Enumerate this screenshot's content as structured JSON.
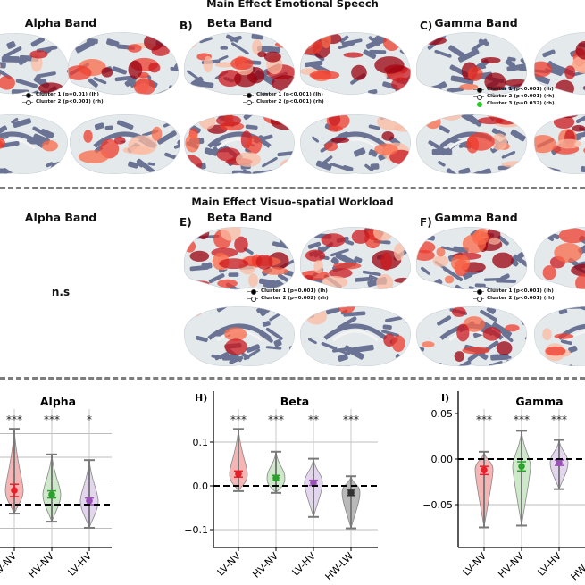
{
  "top_section": {
    "title": "Main Effect Emotional Speech",
    "panels": [
      {
        "letter": "",
        "title": "Alpha Band",
        "legend": [
          "Cluster 1 (p=0.01) (lh)",
          "Cluster 2 (p<0.001) (rh)"
        ]
      },
      {
        "letter": "B)",
        "title": "Beta Band",
        "legend": [
          "Cluster 1 (p<0.001) (lh)",
          "Cluster 2 (p<0.001) (rh)"
        ]
      },
      {
        "letter": "C)",
        "title": "Gamma Band",
        "legend": [
          "Cluster 1 (p<0.001) (lh)",
          "Cluster 2 (p<0.001) (rh)",
          "Cluster 3 (p=0.032) (rh)"
        ]
      }
    ]
  },
  "middle_section": {
    "title": "Main Effect Visuo-spatial Workload",
    "panels": [
      {
        "letter": "",
        "title": "Alpha Band",
        "note": "n.s"
      },
      {
        "letter": "E)",
        "title": "Beta Band",
        "legend": [
          "Cluster 1 (p=0.001) (lh)",
          "Cluster 2 (p=0.002) (rh)"
        ]
      },
      {
        "letter": "F)",
        "title": "Gamma Band",
        "legend": [
          "Cluster 1 (p<0.001) (lh)",
          "Cluster 2 (p<0.001) (rh)"
        ]
      }
    ]
  },
  "colors": {
    "LV-NV": {
      "point": "#e8202a",
      "fill": "#f4a3a3"
    },
    "HV-NV": {
      "point": "#2ca02c",
      "fill": "#c2e3bb"
    },
    "LV-HV": {
      "point": "#9b4fb8",
      "fill": "#dccbe8"
    },
    "HW-LW": {
      "point": "#333333",
      "fill": "#a8a8a8"
    },
    "cluster_marker_3": "#22cc22",
    "brain_sulci": "#6b7394",
    "brain_gyri": "#e4e9ec",
    "activation": "#d7301f"
  },
  "chart_data": [
    {
      "type": "violin",
      "letter": "",
      "title": "Alpha",
      "categories": [
        "LV-NV",
        "HV-NV",
        "LV-HV"
      ],
      "significance": [
        "***",
        "***",
        "*"
      ],
      "mean": [
        0.03,
        0.021,
        0.008
      ],
      "ci": [
        [
          0.017,
          0.043
        ],
        [
          0.014,
          0.029
        ],
        [
          0.0,
          0.014
        ]
      ],
      "min": [
        -0.019,
        -0.036,
        -0.049
      ],
      "max": [
        0.16,
        0.106,
        0.094
      ],
      "ytick_labels": [],
      "grid": true,
      "reference_line": 0
    },
    {
      "type": "violin",
      "letter": "H)",
      "title": "Beta",
      "categories": [
        "LV-NV",
        "HV-NV",
        "LV-HV",
        "HW-LW"
      ],
      "significance": [
        "***",
        "***",
        "**",
        "***"
      ],
      "mean": [
        0.027,
        0.018,
        0.007,
        -0.016
      ],
      "ci": [
        [
          0.02,
          0.034
        ],
        [
          0.012,
          0.024
        ],
        [
          0.001,
          0.013
        ],
        [
          -0.022,
          -0.01
        ]
      ],
      "min": [
        -0.012,
        -0.016,
        -0.071,
        -0.097
      ],
      "max": [
        0.13,
        0.078,
        0.062,
        0.022
      ],
      "yticks": [
        0.1,
        0.0,
        -0.1
      ],
      "ytick_labels": [
        "0.1",
        "0.0",
        "−0.1"
      ],
      "ylim": [
        -0.14,
        0.17
      ],
      "grid": true,
      "reference_line": 0
    },
    {
      "type": "violin",
      "letter": "I)",
      "title": "Gamma",
      "categories": [
        "LV-NV",
        "HV-NV",
        "LV-HV",
        "HW-LW"
      ],
      "significance": [
        "***",
        "***",
        "***",
        ""
      ],
      "mean": [
        -0.012,
        -0.008,
        -0.004,
        null
      ],
      "ci": [
        [
          -0.017,
          -0.008
        ],
        [
          -0.013,
          -0.003
        ],
        [
          -0.007,
          -0.001
        ],
        null
      ],
      "min": [
        -0.075,
        -0.073,
        -0.033,
        null
      ],
      "max": [
        0.008,
        0.031,
        0.021,
        null
      ],
      "yticks": [
        0.05,
        0.0,
        -0.05
      ],
      "ytick_labels": [
        "0.05",
        "0.00",
        "−0.05"
      ],
      "ylim": [
        -0.097,
        0.055
      ],
      "grid": true,
      "reference_line": 0
    }
  ]
}
